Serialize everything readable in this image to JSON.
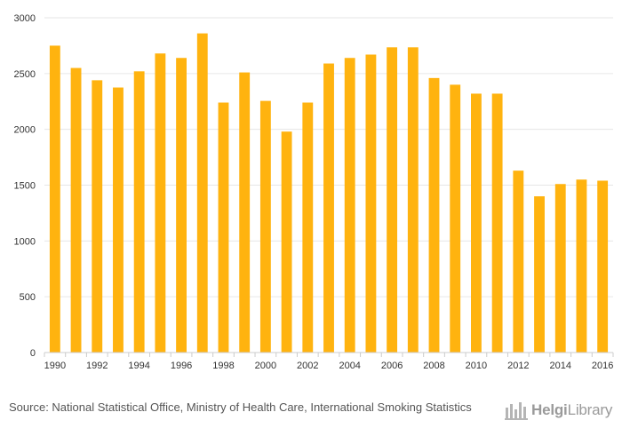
{
  "chart_data": {
    "type": "bar",
    "categories": [
      "1990",
      "1991",
      "1992",
      "1993",
      "1994",
      "1995",
      "1996",
      "1997",
      "1998",
      "1999",
      "2000",
      "2001",
      "2002",
      "2003",
      "2004",
      "2005",
      "2006",
      "2007",
      "2008",
      "2009",
      "2010",
      "2011",
      "2012",
      "2013",
      "2014",
      "2015",
      "2016"
    ],
    "x_tick_labels": [
      "1990",
      "1992",
      "1994",
      "1996",
      "1998",
      "2000",
      "2002",
      "2004",
      "2006",
      "2008",
      "2010",
      "2012",
      "2014",
      "2016"
    ],
    "values": [
      2750,
      2550,
      2440,
      2375,
      2520,
      2680,
      2640,
      2860,
      2240,
      2510,
      2255,
      1980,
      2240,
      2590,
      2640,
      2670,
      2735,
      2735,
      2460,
      2400,
      2320,
      2320,
      1630,
      1400,
      1510,
      1550,
      1540
    ],
    "y_tick_labels": [
      "0",
      "500",
      "1000",
      "1500",
      "2000",
      "2500",
      "3000"
    ],
    "ylim": [
      0,
      3000
    ],
    "title": "",
    "xlabel": "",
    "ylabel": "",
    "grid": true,
    "bar_color": "#FFB30F",
    "gridline_color": "#E6E6E6"
  },
  "footer": {
    "source": "Source: National Statistical Office, Ministry of Health Care, International Smoking Statistics",
    "logo_text_bold": "Helgi",
    "logo_text_regular": "Library"
  }
}
